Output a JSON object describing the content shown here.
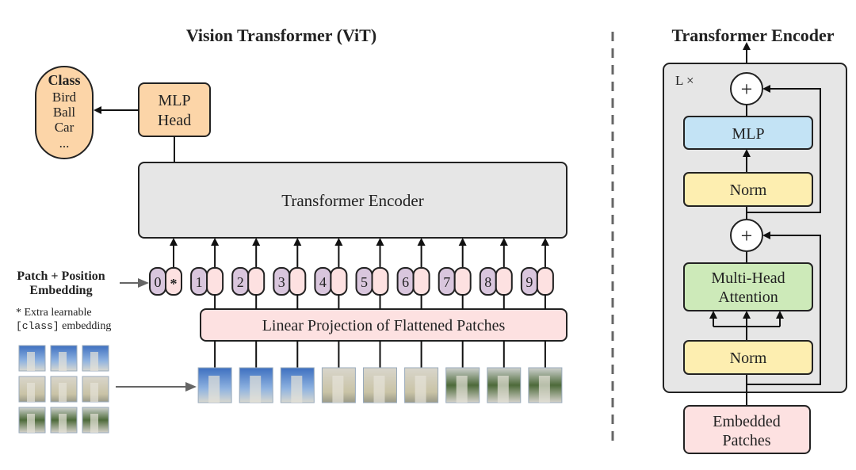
{
  "vit": {
    "title": "Vision Transformer (ViT)",
    "class_box": {
      "title": "Class",
      "items": [
        "Bird",
        "Ball",
        "Car",
        "..."
      ]
    },
    "mlp_head": [
      "MLP",
      "Head"
    ],
    "encoder_label": "Transformer Encoder",
    "embedding_label": [
      "Patch + Position",
      "Embedding"
    ],
    "extra_note": {
      "line1": "* Extra learnable",
      "code": "[class]",
      "line2_rest": " embedding"
    },
    "tokens": [
      "0",
      "1",
      "2",
      "3",
      "4",
      "5",
      "6",
      "7",
      "8",
      "9"
    ],
    "class_token_mark": "*",
    "projection_label": "Linear Projection of Flattened Patches"
  },
  "encoder": {
    "title": "Transformer Encoder",
    "repeat_label": "L ×",
    "plus": "+",
    "mlp": "MLP",
    "norm": "Norm",
    "attention": [
      "Multi-Head",
      "Attention"
    ],
    "input": [
      "Embedded",
      "Patches"
    ]
  },
  "colors": {
    "class": "#fcd5a8",
    "token_pos": "#d9c6dd",
    "token_patch": "#fde1e1",
    "encoder": "#e6e6e6",
    "mlp": "#c3e3f5",
    "norm": "#fdeeb0",
    "attention": "#cdeab9",
    "projection": "#fde1e1"
  }
}
